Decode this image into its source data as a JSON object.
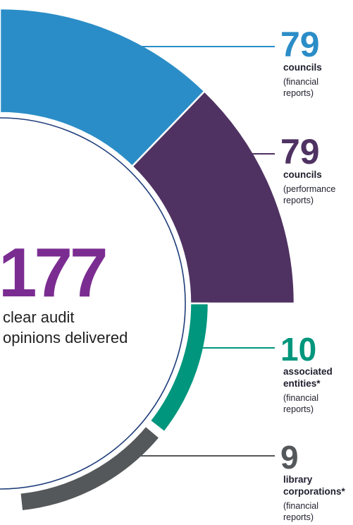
{
  "colors": {
    "financial": "#2b8dc7",
    "performance": "#4f3262",
    "associated": "#00967d",
    "library": "#54585a",
    "total": "#7b2c91"
  },
  "center": {
    "value": "177",
    "line1": "clear audit",
    "line2": "opinions delivered"
  },
  "chart_data": {
    "type": "pie",
    "total": 177,
    "total_label": "clear audit opinions delivered",
    "segments": [
      {
        "key": "financial",
        "value": 79,
        "label_lines": [
          "councils"
        ],
        "sub_lines": [
          "(financial",
          "reports)"
        ]
      },
      {
        "key": "performance",
        "value": 79,
        "label_lines": [
          "councils"
        ],
        "sub_lines": [
          "(performance",
          "reports)"
        ]
      },
      {
        "key": "associated",
        "value": 10,
        "label_lines": [
          "associated",
          "entities*"
        ],
        "sub_lines": [
          "(financial",
          "reports)"
        ]
      },
      {
        "key": "library",
        "value": 9,
        "label_lines": [
          "library",
          "corporations*"
        ],
        "sub_lines": [
          "(financial",
          "reports)"
        ]
      }
    ]
  }
}
